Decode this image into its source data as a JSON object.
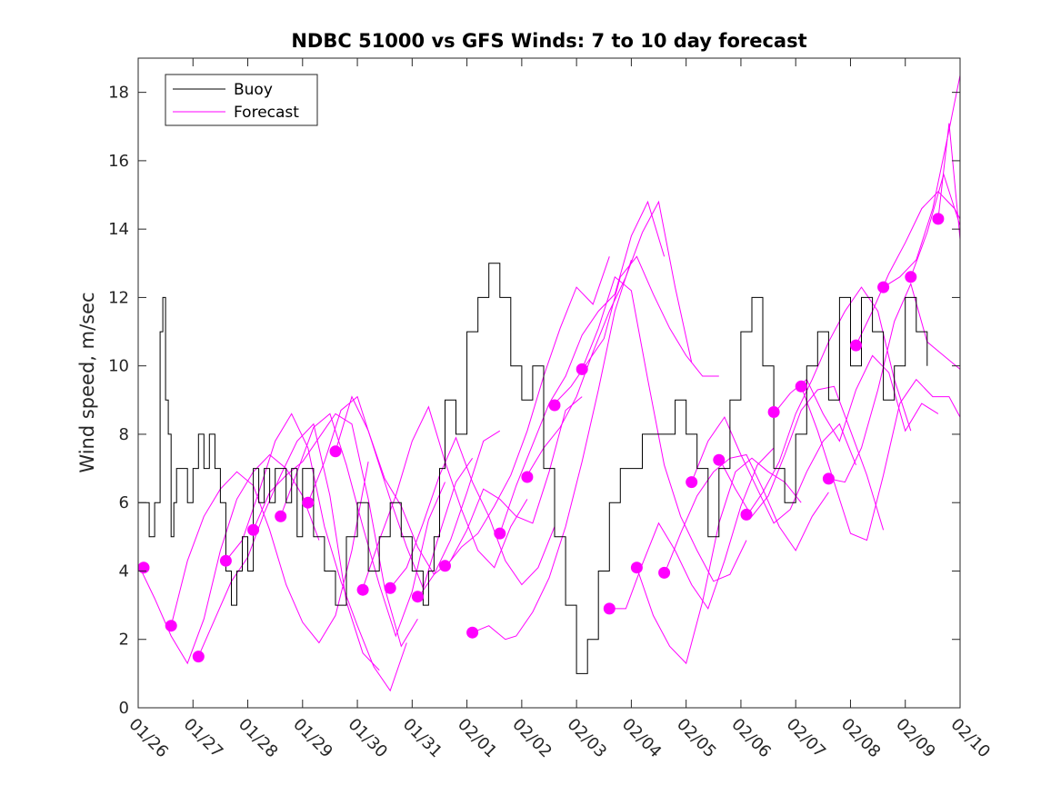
{
  "chart_data": {
    "type": "line",
    "title": "NDBC 51000 vs GFS Winds: 7 to 10 day forecast",
    "xlabel": "",
    "ylabel": "Wind speed, m/sec",
    "xlim": [
      0,
      15
    ],
    "ylim": [
      0,
      19
    ],
    "x_tick_labels": [
      "01/26",
      "01/27",
      "01/28",
      "01/29",
      "01/30",
      "01/31",
      "02/01",
      "02/02",
      "02/03",
      "02/04",
      "02/05",
      "02/06",
      "02/07",
      "02/08",
      "02/09",
      "02/10"
    ],
    "y_ticks": [
      0,
      2,
      4,
      6,
      8,
      10,
      12,
      14,
      16,
      18
    ],
    "grid": false,
    "legend": {
      "position": "top-left",
      "entries": [
        "Buoy",
        "Forecast"
      ]
    },
    "colors": {
      "buoy": "#000000",
      "forecast": "#ff00ff"
    },
    "buoy": {
      "name": "Buoy",
      "x": [
        0.0,
        0.1,
        0.2,
        0.3,
        0.35,
        0.4,
        0.45,
        0.5,
        0.55,
        0.6,
        0.65,
        0.7,
        0.8,
        0.9,
        1.0,
        1.1,
        1.2,
        1.3,
        1.4,
        1.5,
        1.6,
        1.7,
        1.8,
        1.9,
        2.0,
        2.1,
        2.2,
        2.3,
        2.4,
        2.5,
        2.6,
        2.7,
        2.8,
        2.9,
        3.0,
        3.2,
        3.4,
        3.6,
        3.8,
        4.0,
        4.2,
        4.4,
        4.6,
        4.8,
        5.0,
        5.1,
        5.2,
        5.3,
        5.4,
        5.5,
        5.6,
        5.8,
        6.0,
        6.2,
        6.4,
        6.6,
        6.8,
        7.0,
        7.2,
        7.4,
        7.6,
        7.8,
        8.0,
        8.2,
        8.4,
        8.6,
        8.8,
        9.0,
        9.2,
        9.4,
        9.6,
        9.8,
        10.0,
        10.2,
        10.4,
        10.6,
        10.8,
        11.0,
        11.2,
        11.4,
        11.6,
        11.8,
        12.0,
        12.2,
        12.4,
        12.6,
        12.8,
        13.0,
        13.2,
        13.4,
        13.6,
        13.8,
        14.0,
        14.2,
        14.4
      ],
      "y": [
        6,
        6,
        5,
        6,
        6,
        11,
        12,
        9,
        8,
        5,
        6,
        7,
        7,
        6,
        7,
        8,
        7,
        8,
        7,
        6,
        4,
        3,
        4,
        5,
        4,
        7,
        6,
        7,
        6,
        7,
        7,
        6,
        7,
        5,
        7,
        5,
        4,
        3,
        5,
        6,
        4,
        5,
        6,
        5,
        4,
        4,
        3,
        4,
        5,
        7,
        9,
        8,
        11,
        12,
        13,
        12,
        10,
        9,
        10,
        7,
        5,
        3,
        1,
        2,
        4,
        6,
        7,
        7,
        8,
        8,
        8,
        9,
        8,
        7,
        5,
        7,
        9,
        11,
        12,
        10,
        7,
        6,
        8,
        10,
        11,
        9,
        12,
        10,
        12,
        11,
        9,
        10,
        12,
        11,
        10
      ]
    },
    "forecast_runs": [
      {
        "x": [
          0.0,
          0.3,
          0.6,
          0.9,
          1.2,
          1.5,
          1.8,
          2.1,
          2.4,
          2.7,
          3.0,
          3.3
        ],
        "y": [
          4.2,
          3.2,
          2.1,
          1.3,
          2.6,
          4.6,
          6.1,
          6.9,
          7.4,
          7.0,
          6.2,
          4.9
        ]
      },
      {
        "x": [
          0.6,
          0.9,
          1.2,
          1.5,
          1.8,
          2.1,
          2.4,
          2.7,
          3.0,
          3.3,
          3.6,
          3.9,
          4.2
        ],
        "y": [
          2.4,
          4.3,
          5.6,
          6.4,
          6.9,
          6.5,
          5.2,
          3.6,
          2.5,
          1.9,
          2.7,
          4.6,
          7.2
        ]
      },
      {
        "x": [
          1.1,
          1.4,
          1.7,
          2.0,
          2.3,
          2.6,
          2.9,
          3.2,
          3.5,
          3.8,
          4.1,
          4.4
        ],
        "y": [
          1.5,
          2.6,
          3.7,
          4.4,
          5.7,
          6.8,
          7.8,
          8.3,
          6.2,
          3.1,
          1.6,
          1.1
        ]
      },
      {
        "x": [
          1.6,
          1.9,
          2.2,
          2.5,
          2.8,
          3.1,
          3.4,
          3.7,
          4.0,
          4.3,
          4.6,
          4.9
        ],
        "y": [
          4.3,
          4.9,
          6.3,
          7.8,
          8.6,
          7.6,
          5.3,
          3.7,
          2.4,
          1.2,
          0.5,
          1.9
        ]
      },
      {
        "x": [
          2.1,
          2.4,
          2.7,
          3.0,
          3.3,
          3.6,
          3.9,
          4.2,
          4.5,
          4.8,
          5.1
        ],
        "y": [
          5.2,
          6.3,
          6.8,
          7.2,
          7.9,
          8.6,
          8.3,
          6.1,
          3.5,
          1.8,
          2.6
        ]
      },
      {
        "x": [
          2.6,
          2.9,
          3.2,
          3.5,
          3.8,
          4.1,
          4.4,
          4.7,
          5.0,
          5.3,
          5.6
        ],
        "y": [
          5.6,
          6.9,
          8.2,
          8.6,
          7.1,
          5.3,
          3.6,
          2.1,
          3.4,
          5.5,
          6.6
        ]
      },
      {
        "x": [
          3.1,
          3.4,
          3.7,
          4.0,
          4.3,
          4.6,
          4.9,
          5.2,
          5.5,
          5.8,
          6.1
        ],
        "y": [
          6.0,
          7.2,
          8.7,
          9.1,
          7.6,
          6.1,
          4.7,
          3.5,
          5.1,
          6.6,
          7.3
        ]
      },
      {
        "x": [
          3.6,
          3.9,
          4.2,
          4.5,
          4.8,
          5.1,
          5.4,
          5.7,
          6.0,
          6.3,
          6.6
        ],
        "y": [
          7.5,
          9.1,
          8.1,
          6.7,
          5.9,
          4.7,
          3.9,
          4.9,
          6.3,
          7.8,
          8.1
        ]
      },
      {
        "x": [
          4.1,
          4.4,
          4.7,
          5.0,
          5.3,
          5.6,
          5.9,
          6.2,
          6.5,
          6.8,
          7.1
        ],
        "y": [
          3.5,
          4.9,
          6.2,
          7.8,
          8.8,
          7.2,
          5.8,
          4.6,
          4.1,
          5.3,
          6.1
        ]
      },
      {
        "x": [
          4.6,
          4.9,
          5.2,
          5.5,
          5.8,
          6.1,
          6.4,
          6.7,
          7.0,
          7.3,
          7.6
        ],
        "y": [
          3.5,
          4.1,
          5.4,
          6.8,
          7.9,
          6.6,
          5.6,
          4.3,
          3.6,
          4.1,
          5.3
        ]
      },
      {
        "x": [
          5.1,
          5.4,
          5.7,
          6.0,
          6.3,
          6.6,
          6.9,
          7.2,
          7.5,
          7.8,
          8.1
        ],
        "y": [
          3.2,
          3.9,
          4.3,
          5.2,
          6.4,
          6.1,
          5.6,
          5.4,
          6.9,
          8.7,
          9.1
        ]
      },
      {
        "x": [
          5.6,
          5.9,
          6.2,
          6.5,
          6.8,
          7.1,
          7.4,
          7.7,
          8.0,
          8.3,
          8.6
        ],
        "y": [
          4.1,
          4.7,
          5.1,
          5.9,
          6.8,
          8.1,
          9.7,
          11.1,
          12.3,
          11.8,
          13.2
        ]
      },
      {
        "x": [
          6.1,
          6.4,
          6.7,
          6.9,
          7.2,
          7.5,
          7.8,
          8.1,
          8.4,
          8.7,
          9.0
        ],
        "y": [
          2.2,
          2.4,
          2.0,
          2.1,
          2.8,
          3.8,
          5.3,
          7.2,
          9.3,
          11.6,
          13.1
        ]
      },
      {
        "x": [
          6.6,
          6.9,
          7.2,
          7.5,
          7.8,
          8.1,
          8.4,
          8.7,
          9.0,
          9.3,
          9.6
        ],
        "y": [
          5.1,
          6.5,
          7.7,
          8.9,
          9.7,
          10.9,
          11.6,
          12.1,
          13.8,
          14.8,
          13.2
        ]
      },
      {
        "x": [
          7.1,
          7.4,
          7.7,
          8.0,
          8.3,
          8.6,
          8.9,
          9.2,
          9.5,
          9.8,
          10.1
        ],
        "y": [
          6.8,
          7.6,
          8.2,
          9.1,
          10.4,
          11.6,
          12.6,
          13.9,
          14.8,
          12.3,
          10.1
        ]
      },
      {
        "x": [
          7.6,
          7.9,
          8.2,
          8.5,
          8.8,
          9.1,
          9.4,
          9.7,
          10.0,
          10.3,
          10.6
        ],
        "y": [
          8.9,
          9.4,
          10.1,
          10.8,
          12.6,
          13.2,
          12.1,
          11.1,
          10.3,
          9.7,
          9.7
        ]
      },
      {
        "x": [
          8.1,
          8.4,
          8.7,
          9.0,
          9.3,
          9.6,
          9.9,
          10.2,
          10.5,
          10.8,
          11.1
        ],
        "y": [
          9.9,
          11.1,
          12.6,
          12.2,
          9.6,
          7.1,
          5.6,
          4.6,
          3.7,
          3.9,
          4.9
        ]
      },
      {
        "x": [
          8.6,
          8.9,
          9.2,
          9.5,
          9.8,
          10.1,
          10.4,
          10.7,
          11.0,
          11.3,
          11.6
        ],
        "y": [
          2.9,
          2.9,
          4.2,
          5.4,
          4.6,
          3.6,
          2.9,
          4.3,
          5.9,
          7.1,
          7.6
        ]
      },
      {
        "x": [
          9.1,
          9.4,
          9.7,
          10.0,
          10.3,
          10.6,
          10.9,
          11.2,
          11.5,
          11.8,
          12.1
        ],
        "y": [
          4.1,
          2.7,
          1.8,
          1.3,
          3.1,
          5.4,
          6.9,
          7.3,
          6.9,
          6.6,
          6.0
        ]
      },
      {
        "x": [
          9.6,
          9.9,
          10.2,
          10.5,
          10.8,
          11.1,
          11.4,
          11.7,
          12.0,
          12.3,
          12.6
        ],
        "y": [
          3.9,
          5.1,
          6.2,
          6.9,
          7.3,
          7.4,
          6.4,
          5.3,
          4.6,
          5.6,
          6.3
        ]
      },
      {
        "x": [
          10.1,
          10.4,
          10.7,
          11.0,
          11.3,
          11.6,
          11.9,
          12.2,
          12.5,
          12.8,
          13.1
        ],
        "y": [
          6.6,
          7.8,
          8.5,
          7.4,
          6.4,
          5.4,
          5.8,
          6.9,
          7.8,
          8.3,
          7.1
        ]
      },
      {
        "x": [
          10.6,
          10.9,
          11.2,
          11.5,
          11.8,
          12.1,
          12.4,
          12.7,
          13.0,
          13.3,
          13.6
        ],
        "y": [
          7.3,
          6.4,
          5.6,
          6.2,
          7.4,
          8.7,
          9.3,
          9.4,
          8.1,
          6.8,
          5.2
        ]
      },
      {
        "x": [
          11.1,
          11.4,
          11.7,
          12.0,
          12.3,
          12.6,
          12.9,
          13.2,
          13.5,
          13.8,
          14.1
        ],
        "y": [
          5.6,
          6.3,
          7.2,
          8.6,
          9.6,
          10.7,
          11.6,
          12.3,
          11.6,
          9.6,
          8.1
        ]
      },
      {
        "x": [
          11.6,
          11.9,
          12.2,
          12.5,
          12.8,
          13.1,
          13.4,
          13.7,
          14.0,
          14.3,
          14.6
        ],
        "y": [
          8.6,
          9.2,
          9.6,
          8.6,
          7.8,
          9.3,
          10.3,
          9.8,
          8.1,
          8.9,
          8.6
        ]
      },
      {
        "x": [
          12.1,
          12.4,
          12.7,
          13.0,
          13.3,
          13.6,
          13.9,
          14.2,
          14.5,
          14.8,
          15.0
        ],
        "y": [
          9.4,
          8.1,
          6.6,
          5.1,
          4.9,
          6.8,
          8.9,
          9.6,
          9.1,
          9.1,
          8.5
        ]
      },
      {
        "x": [
          12.6,
          12.9,
          13.2,
          13.5,
          13.8,
          14.1,
          14.4,
          14.7,
          15.0
        ],
        "y": [
          6.7,
          6.6,
          7.6,
          9.3,
          11.3,
          12.4,
          10.7,
          10.3,
          9.9
        ]
      },
      {
        "x": [
          13.1,
          13.4,
          13.7,
          14.0,
          14.3,
          14.6,
          14.9,
          15.0
        ],
        "y": [
          10.6,
          11.6,
          12.7,
          13.6,
          14.6,
          15.1,
          14.6,
          14.3
        ]
      },
      {
        "x": [
          13.6,
          13.9,
          14.2,
          14.5,
          14.8,
          15.0
        ],
        "y": [
          12.3,
          12.6,
          13.1,
          14.6,
          16.9,
          18.5
        ]
      },
      {
        "x": [
          14.1,
          14.4,
          14.7,
          15.0
        ],
        "y": [
          12.6,
          13.9,
          15.6,
          14.1
        ]
      },
      {
        "x": [
          14.6,
          14.8,
          15.0
        ],
        "y": [
          14.3,
          17.1,
          13.7
        ]
      }
    ],
    "forecast_markers": {
      "x": [
        0.1,
        0.6,
        1.1,
        1.6,
        2.1,
        2.6,
        3.1,
        3.6,
        4.1,
        4.6,
        5.1,
        5.6,
        6.1,
        6.6,
        7.1,
        7.6,
        8.1,
        8.6,
        9.1,
        9.6,
        10.1,
        10.6,
        11.1,
        11.6,
        12.1,
        12.6,
        13.1,
        13.6,
        14.1,
        14.6
      ],
      "y": [
        4.1,
        2.4,
        1.5,
        4.3,
        5.2,
        5.6,
        6.0,
        7.5,
        3.45,
        3.5,
        3.25,
        4.15,
        2.2,
        5.1,
        6.75,
        8.85,
        9.9,
        2.9,
        4.1,
        3.95,
        6.6,
        7.25,
        5.65,
        8.65,
        9.4,
        6.7,
        10.6,
        12.3,
        12.6,
        14.3
      ]
    }
  }
}
